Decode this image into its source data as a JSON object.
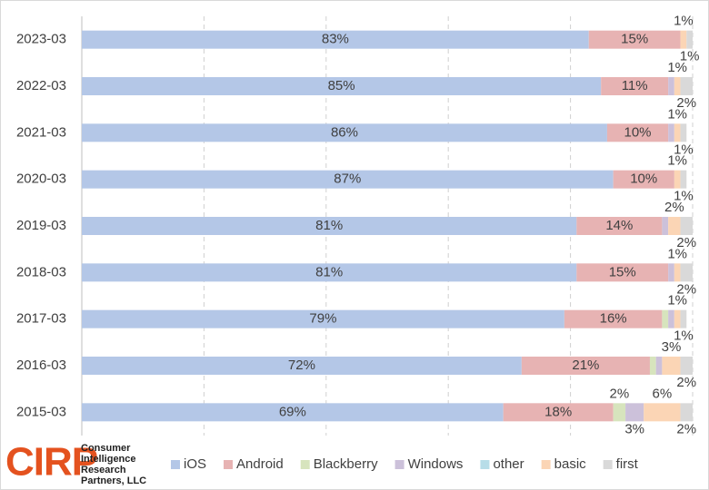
{
  "chart_data": {
    "type": "stacked_bar_horizontal",
    "categories": [
      "2023-03",
      "2022-03",
      "2021-03",
      "2020-03",
      "2019-03",
      "2018-03",
      "2017-03",
      "2016-03",
      "2015-03"
    ],
    "series": [
      {
        "name": "iOS",
        "color": "#b4c7e7",
        "values": [
          83,
          85,
          86,
          87,
          81,
          81,
          79,
          72,
          69
        ],
        "value_labels": [
          "83%",
          "85%",
          "86%",
          "87%",
          "81%",
          "81%",
          "79%",
          "72%",
          "69%"
        ]
      },
      {
        "name": "Android",
        "color": "#e7b3b3",
        "values": [
          15,
          11,
          10,
          10,
          14,
          15,
          16,
          21,
          18
        ],
        "value_labels": [
          "15%",
          "11%",
          "10%",
          "10%",
          "14%",
          "15%",
          "16%",
          "21%",
          "18%"
        ]
      },
      {
        "name": "Blackberry",
        "color": "#d7e4bd",
        "values": [
          0,
          0,
          0,
          0,
          0,
          0,
          1,
          1,
          2
        ],
        "value_labels": [
          null,
          null,
          null,
          null,
          null,
          null,
          null,
          null,
          "2%"
        ]
      },
      {
        "name": "Windows",
        "color": "#ccc1da",
        "values": [
          0,
          1,
          1,
          0,
          1,
          1,
          1,
          1,
          3
        ],
        "value_labels": [
          null,
          null,
          null,
          null,
          null,
          null,
          null,
          null,
          "3%"
        ]
      },
      {
        "name": "other",
        "color": "#b7dde8",
        "values": [
          0,
          0,
          0,
          0,
          0,
          0,
          0,
          0,
          0
        ],
        "value_labels": [
          null,
          null,
          null,
          null,
          null,
          null,
          null,
          null,
          null
        ]
      },
      {
        "name": "basic",
        "color": "#fbd5b5",
        "values": [
          1,
          1,
          1,
          1,
          2,
          1,
          1,
          3,
          6
        ],
        "value_labels": [
          "1%",
          "1%",
          "1%",
          "1%",
          "2%",
          "1%",
          "1%",
          "3%",
          "6%"
        ]
      },
      {
        "name": "first",
        "color": "#d9d9d9",
        "values": [
          1,
          2,
          1,
          1,
          2,
          2,
          1,
          2,
          2
        ],
        "value_labels": [
          "1%",
          "2%",
          "1%",
          "1%",
          "2%",
          "2%",
          "1%",
          "2%",
          "2%"
        ]
      }
    ],
    "xlim": [
      0,
      100
    ],
    "xticks": [
      0,
      20,
      40,
      60,
      80,
      100
    ],
    "show_tick_labels": false,
    "grid": true,
    "legend": "bottom",
    "logo": {
      "mark": "CIRP",
      "lines": [
        "Consumer",
        "Intelligence",
        "Research",
        "Partners, LLC"
      ]
    }
  }
}
